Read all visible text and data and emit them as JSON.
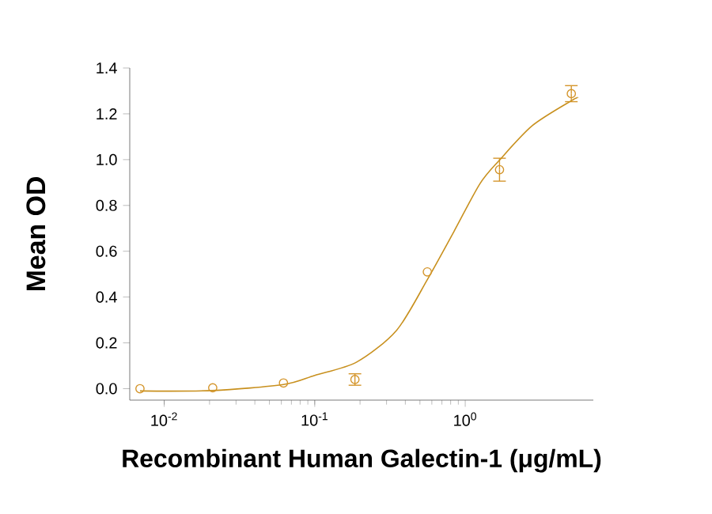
{
  "chart_data": {
    "type": "scatter",
    "xlabel": "Recombinant Human Galectin-1 (μg/mL)",
    "ylabel": "Mean OD",
    "log": "x",
    "marker": "circle",
    "grid": false,
    "xlim": [
      0.0059,
      7.1
    ],
    "ylim": [
      -0.05,
      1.4
    ],
    "xticks": [
      {
        "value": 0.01,
        "label": "10$^{-2}$"
      },
      {
        "value": 0.1,
        "label": "10$^{-1}$"
      },
      {
        "value": 1,
        "label": "10$^{0}$"
      }
    ],
    "yticks": [
      {
        "value": 0,
        "label": "0.0"
      },
      {
        "value": 0.2,
        "label": "0.2"
      },
      {
        "value": 0.4,
        "label": "0.4"
      },
      {
        "value": 0.6,
        "label": "0.6"
      },
      {
        "value": 0.8,
        "label": "0.8"
      },
      {
        "value": 1.0,
        "label": "1.0"
      },
      {
        "value": 1.2,
        "label": "1.2"
      },
      {
        "value": 1.4,
        "label": "1.4"
      }
    ],
    "series": [
      {
        "color": "#d4952b",
        "x": [
          0.0069,
          0.021,
          0.062,
          0.185,
          0.56,
          1.69,
          5.07
        ],
        "values": [
          0.0,
          0.004,
          0.025,
          0.04,
          0.51,
          0.956,
          1.288
        ],
        "errors": [
          null,
          null,
          null,
          0.025,
          null,
          0.05,
          0.035
        ]
      },
      {
        "type": "line",
        "color": "#c8901e",
        "marker": "none",
        "x": [
          0.0069,
          0.021,
          0.062,
          0.1,
          0.19,
          0.35,
          0.56,
          0.84,
          1.25,
          1.69,
          2.8,
          5.1,
          5.6
        ],
        "values": [
          -0.01,
          -0.008,
          0.018,
          0.058,
          0.116,
          0.255,
          0.476,
          0.685,
          0.894,
          0.998,
          1.149,
          1.258,
          1.27
        ]
      }
    ]
  }
}
